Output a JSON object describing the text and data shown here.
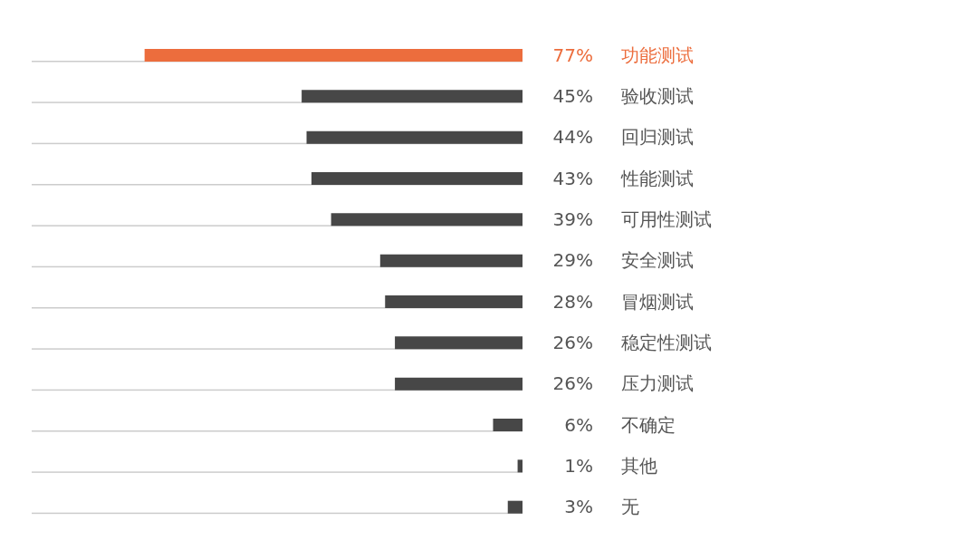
{
  "chart_data": {
    "type": "bar",
    "orientation": "horizontal",
    "categories": [
      "功能测试",
      "验收测试",
      "回归测试",
      "性能测试",
      "可用性测试",
      "安全测试",
      "冒烟测试",
      "稳定性测试",
      "压力测试",
      "不确定",
      "其他",
      "无"
    ],
    "values": [
      77,
      45,
      44,
      43,
      39,
      29,
      28,
      26,
      26,
      6,
      1,
      3
    ],
    "value_labels": [
      "77%",
      "45%",
      "44%",
      "43%",
      "39%",
      "29%",
      "28%",
      "26%",
      "26%",
      "6%",
      "1%",
      "3%"
    ],
    "colors": [
      "#ec6d3d",
      "#474747",
      "#474747",
      "#474747",
      "#474747",
      "#474747",
      "#474747",
      "#474747",
      "#474747",
      "#474747",
      "#474747",
      "#474747"
    ],
    "xlim": [
      100,
      0
    ]
  }
}
